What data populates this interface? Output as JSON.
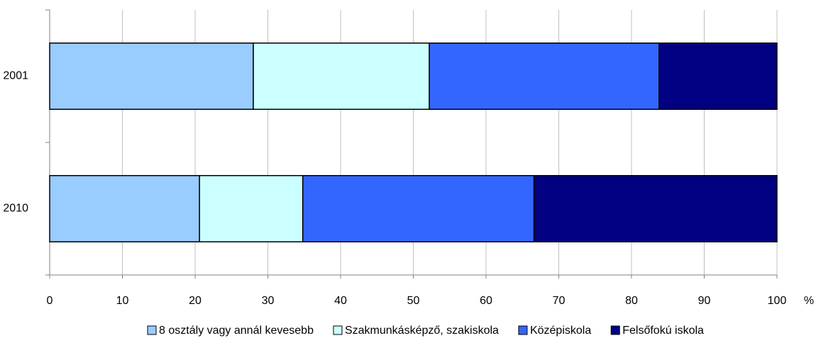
{
  "chart_data": {
    "type": "stacked-bar-horizontal",
    "categories": [
      "2001",
      "2010"
    ],
    "series": [
      {
        "name": "8 osztály vagy annál kevesebb",
        "color": "#99ccff",
        "values": [
          28.0,
          20.6
        ]
      },
      {
        "name": "Szakmunkásképző, szakiskola",
        "color": "#ccffff",
        "values": [
          24.2,
          14.2
        ]
      },
      {
        "name": "Középiskola",
        "color": "#3366ff",
        "values": [
          31.6,
          31.8
        ]
      },
      {
        "name": "Felsőfokú iskola",
        "color": "#000080",
        "values": [
          16.2,
          33.4
        ]
      }
    ],
    "xlabel": "%",
    "xlim": [
      0,
      100
    ],
    "xticks": [
      0,
      10,
      20,
      30,
      40,
      50,
      60,
      70,
      80,
      90,
      100
    ],
    "grid": true,
    "legend": "bottom"
  }
}
